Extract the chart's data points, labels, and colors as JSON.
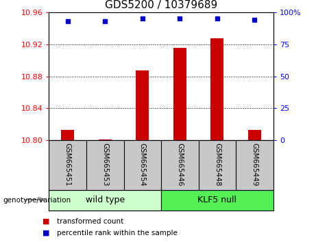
{
  "title": "GDS5200 / 10379689",
  "samples": [
    "GSM665451",
    "GSM665453",
    "GSM665454",
    "GSM665446",
    "GSM665448",
    "GSM665449"
  ],
  "bar_values": [
    10.813,
    10.801,
    10.887,
    10.915,
    10.927,
    10.813
  ],
  "dot_values": [
    93,
    93,
    95,
    95,
    95,
    94
  ],
  "ylim_left": [
    10.8,
    10.96
  ],
  "ylim_right": [
    0,
    100
  ],
  "yticks_left": [
    10.8,
    10.84,
    10.88,
    10.92,
    10.96
  ],
  "yticks_right": [
    0,
    25,
    50,
    75,
    100
  ],
  "bar_color": "#cc0000",
  "dot_color": "#0000cc",
  "baseline": 10.8,
  "wild_type_label": "wild type",
  "klf5_label": "KLF5 null",
  "wild_type_color": "#ccffcc",
  "klf5_color": "#55ee55",
  "group_label": "genotype/variation",
  "legend_bar_label": "transformed count",
  "legend_dot_label": "percentile rank within the sample",
  "title_fontsize": 11,
  "tick_fontsize": 8,
  "label_fontsize": 7.5,
  "sample_label_fontsize": 7.5
}
